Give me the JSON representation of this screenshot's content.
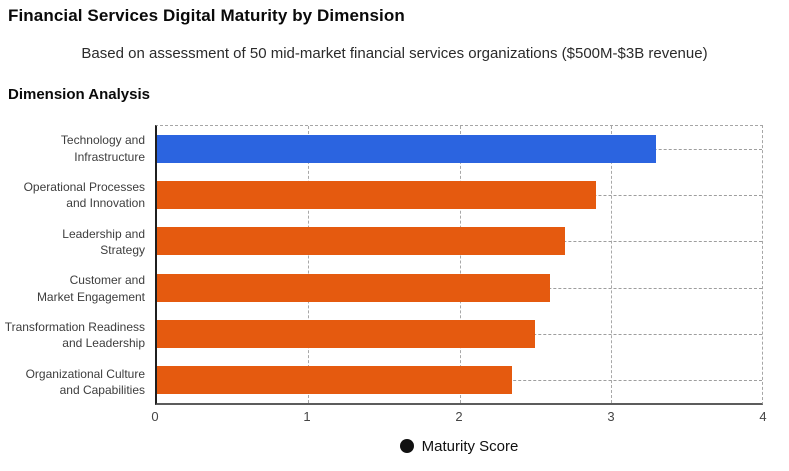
{
  "header": {
    "title": "Financial Services Digital Maturity by Dimension",
    "subtitle": "Based on assessment of 50 mid-market financial services organizations ($500M-$3B revenue)",
    "section_title": "Dimension Analysis"
  },
  "chart_data": {
    "type": "bar",
    "orientation": "horizontal",
    "categories": [
      "Technology and\nInfrastructure",
      "Operational Processes\nand Innovation",
      "Leadership and\nStrategy",
      "Customer and\nMarket Engagement",
      "Transformation Readiness\nand Leadership",
      "Organizational Culture\nand Capabilities"
    ],
    "series": [
      {
        "name": "Maturity Score",
        "values": [
          3.3,
          2.9,
          2.7,
          2.6,
          2.5,
          2.35
        ]
      }
    ],
    "bar_colors": [
      "#2b64e0",
      "#e55a0f",
      "#e55a0f",
      "#e55a0f",
      "#e55a0f",
      "#e55a0f"
    ],
    "xlim": [
      0,
      4
    ],
    "x_ticks": [
      "0",
      "1",
      "2",
      "3",
      "4"
    ],
    "grid": "dashed",
    "legend_position": "bottom"
  },
  "legend": {
    "label": "Maturity Score",
    "marker_color": "#111111"
  },
  "colors": {
    "highlight_bar": "#2b64e0",
    "default_bar": "#e55a0f",
    "gridline": "#a8a8a8",
    "background": "#ffffff"
  }
}
